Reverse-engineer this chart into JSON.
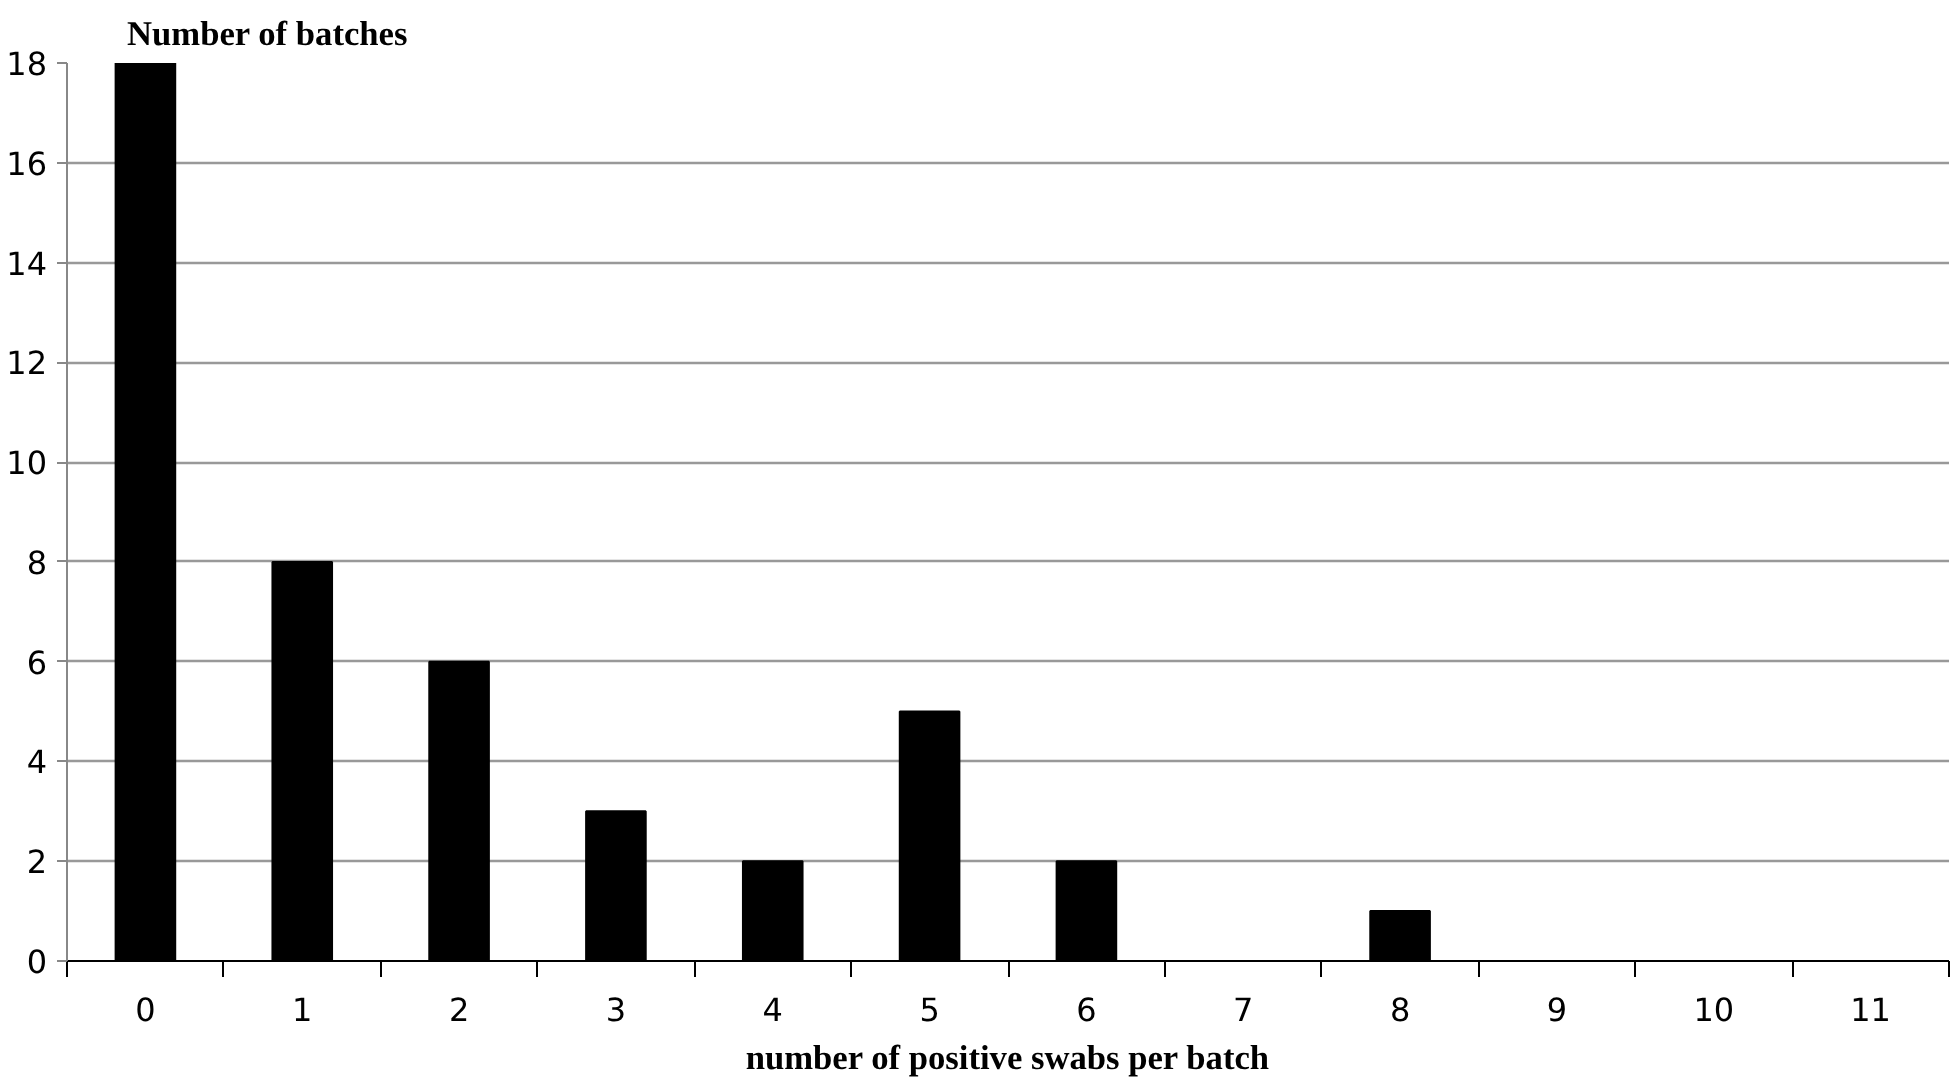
{
  "chart_data": {
    "type": "bar",
    "ylabel": "Number of batches",
    "xlabel": "number of positive swabs per batch",
    "categories": [
      "0",
      "1",
      "2",
      "3",
      "4",
      "5",
      "6",
      "7",
      "8",
      "9",
      "10",
      "11"
    ],
    "values": [
      18,
      8,
      6,
      3,
      2,
      5,
      2,
      0,
      1,
      0,
      0,
      0
    ],
    "color": "#000000",
    "ylim": [
      0,
      18
    ],
    "yticks": [
      0,
      2,
      4,
      6,
      8,
      10,
      12,
      14,
      16,
      18
    ],
    "grid": "y"
  }
}
